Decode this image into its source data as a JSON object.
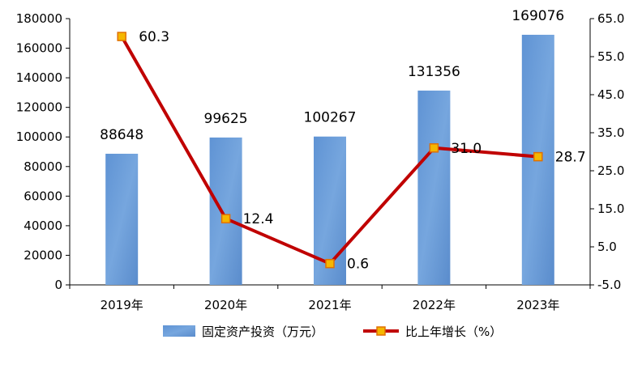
{
  "chart_data": {
    "type": "bar+line",
    "categories": [
      "2019年",
      "2020年",
      "2021年",
      "2022年",
      "2023年"
    ],
    "series": [
      {
        "name": "固定资产投资（万元）",
        "type": "bar",
        "axis": "left",
        "values": [
          88648,
          99625,
          100267,
          131356,
          169076
        ],
        "labels": [
          "88648",
          "99625",
          "100267",
          "131356",
          "169076"
        ],
        "color": "#6a9bd8"
      },
      {
        "name": "比上年增长（%）",
        "type": "line",
        "axis": "right",
        "values": [
          60.3,
          12.4,
          0.6,
          31.0,
          28.7
        ],
        "labels": [
          "60.3",
          "12.4",
          "0.6",
          "31.0",
          "28.7"
        ],
        "color": "#c00000",
        "marker_color": "#f5b700"
      }
    ],
    "y_left": {
      "min": 0,
      "max": 180000,
      "ticks": [
        "0",
        "20000",
        "40000",
        "60000",
        "80000",
        "100000",
        "120000",
        "140000",
        "160000",
        "180000"
      ]
    },
    "y_right": {
      "min": -5.0,
      "max": 65.0,
      "ticks": [
        "-5.0",
        "5.0",
        "15.0",
        "25.0",
        "35.0",
        "45.0",
        "55.0",
        "65.0"
      ]
    },
    "legend_position": "bottom",
    "grid": false
  }
}
